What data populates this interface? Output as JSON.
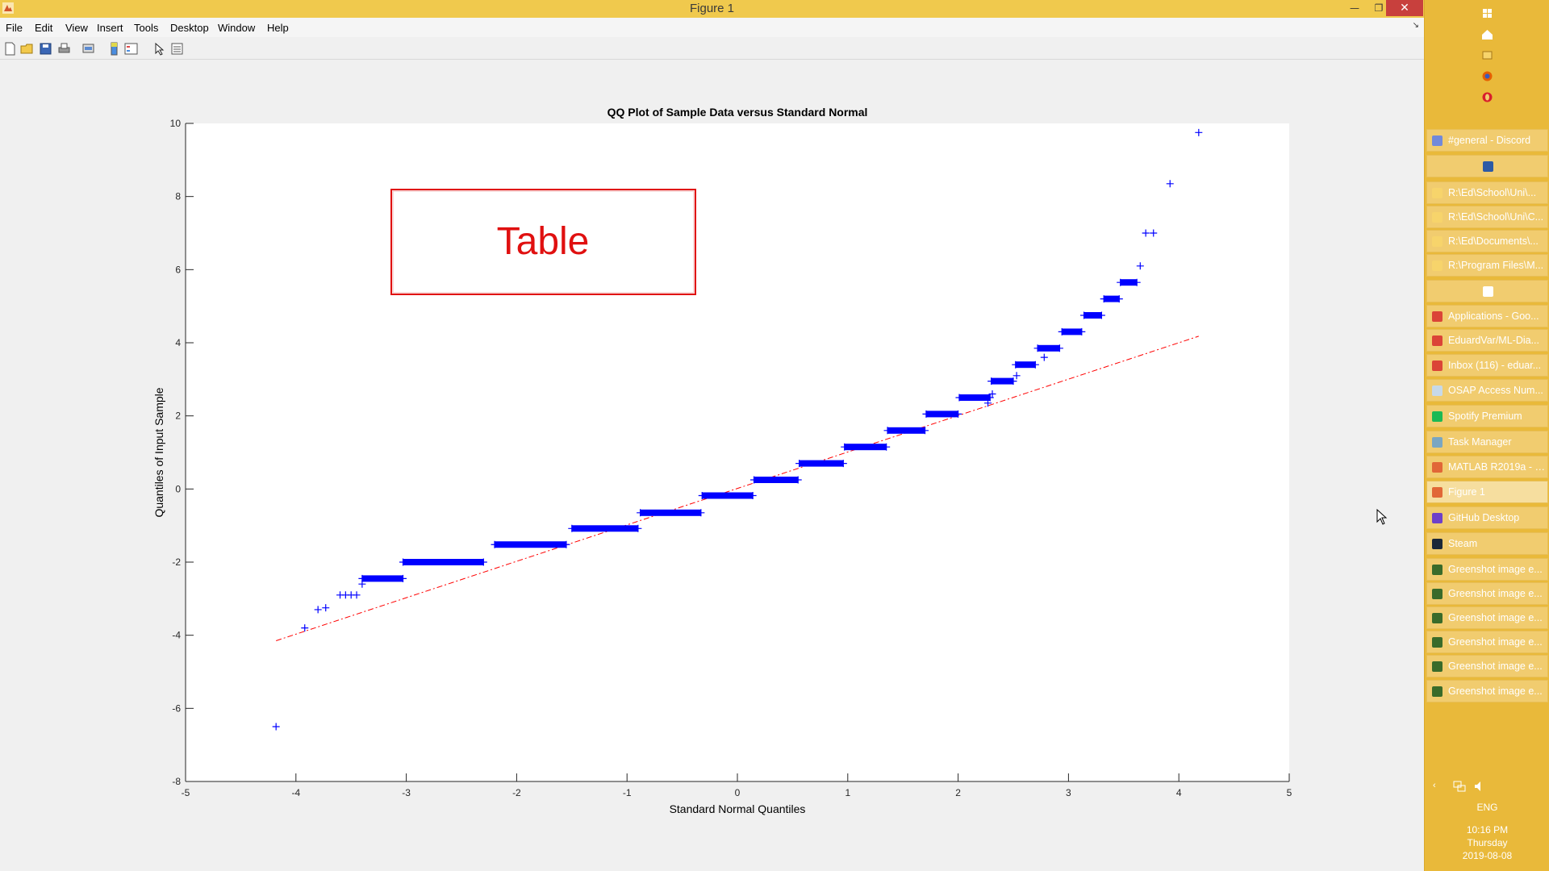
{
  "window": {
    "title": "Figure 1",
    "min_glyph": "—",
    "max_glyph": "❐",
    "close_glyph": "✕"
  },
  "menu": {
    "items": [
      "File",
      "Edit",
      "View",
      "Insert",
      "Tools",
      "Desktop",
      "Window",
      "Help"
    ],
    "expand_glyph": "↘"
  },
  "toolbar": {
    "tools": [
      "new-figure-icon",
      "open-file-icon",
      "save-icon",
      "print-icon",
      "link-plot-icon",
      "insert-colorbar-icon",
      "insert-legend-icon",
      "edit-plot-icon",
      "property-inspector-icon"
    ]
  },
  "overlay": {
    "label": "Table",
    "border_color": "#e01010",
    "text_color": "#e01010"
  },
  "chart_data": {
    "type": "scatter",
    "title": "QQ Plot of Sample Data versus Standard Normal",
    "xlabel": "Standard Normal Quantiles",
    "ylabel": "Quantiles of Input Sample",
    "xlim": [
      -5,
      5
    ],
    "ylim": [
      -8,
      10
    ],
    "xticks": [
      -5,
      -4,
      -3,
      -2,
      -1,
      0,
      1,
      2,
      3,
      4,
      5
    ],
    "yticks": [
      -8,
      -6,
      -4,
      -2,
      0,
      2,
      4,
      6,
      8,
      10
    ],
    "marker": "+",
    "marker_color": "#0000ff",
    "reference_line_color": "#ff0000",
    "reference_line": {
      "style": "dash-dot",
      "from": [
        -4.18,
        -4.15
      ],
      "to": [
        4.18,
        4.18
      ]
    },
    "outliers": [
      [
        -4.18,
        -6.5
      ],
      [
        -3.92,
        -3.8
      ],
      [
        -3.8,
        -3.3
      ],
      [
        -3.73,
        -3.25
      ],
      [
        -3.6,
        -2.9
      ],
      [
        -3.55,
        -2.9
      ],
      [
        -3.5,
        -2.9
      ],
      [
        -3.45,
        -2.9
      ],
      [
        -3.4,
        -2.6
      ],
      [
        4.18,
        9.75
      ],
      [
        3.92,
        8.35
      ],
      [
        3.77,
        7.0
      ],
      [
        3.7,
        7.0
      ],
      [
        3.65,
        6.1
      ],
      [
        2.78,
        3.6
      ],
      [
        2.53,
        3.1
      ],
      [
        2.31,
        2.6
      ],
      [
        2.27,
        2.35
      ]
    ],
    "steps": [
      {
        "x_start": -3.4,
        "x_end": -3.03,
        "y": -2.45
      },
      {
        "x_start": -3.03,
        "x_end": -2.3,
        "y": -2.0
      },
      {
        "x_start": -2.2,
        "x_end": -1.55,
        "y": -1.52
      },
      {
        "x_start": -1.5,
        "x_end": -0.9,
        "y": -1.08
      },
      {
        "x_start": -0.88,
        "x_end": -0.33,
        "y": -0.65
      },
      {
        "x_start": -0.32,
        "x_end": 0.14,
        "y": -0.18
      },
      {
        "x_start": 0.15,
        "x_end": 0.55,
        "y": 0.25
      },
      {
        "x_start": 0.56,
        "x_end": 0.96,
        "y": 0.7
      },
      {
        "x_start": 0.97,
        "x_end": 1.35,
        "y": 1.15
      },
      {
        "x_start": 1.36,
        "x_end": 1.7,
        "y": 1.6
      },
      {
        "x_start": 1.71,
        "x_end": 2.0,
        "y": 2.05
      },
      {
        "x_start": 2.01,
        "x_end": 2.29,
        "y": 2.5
      },
      {
        "x_start": 2.3,
        "x_end": 2.5,
        "y": 2.95
      },
      {
        "x_start": 2.52,
        "x_end": 2.7,
        "y": 3.4
      },
      {
        "x_start": 2.72,
        "x_end": 2.92,
        "y": 3.85
      },
      {
        "x_start": 2.94,
        "x_end": 3.12,
        "y": 4.3
      },
      {
        "x_start": 3.14,
        "x_end": 3.3,
        "y": 4.75
      },
      {
        "x_start": 3.32,
        "x_end": 3.46,
        "y": 5.2
      },
      {
        "x_start": 3.47,
        "x_end": 3.62,
        "y": 5.65
      }
    ]
  },
  "taskbar": {
    "pinned": [
      "windows-start-icon",
      "home-icon",
      "folder-network-icon",
      "firefox-icon",
      "opera-icon"
    ],
    "items": [
      {
        "label": "#general - Discord",
        "icon_color": "#7289da"
      },
      {
        "label": "",
        "icon_color": "#2d5aa5",
        "icon_only": true
      },
      {
        "label": "R:\\Ed\\School\\Uni\\...",
        "icon_color": "#f7d46b"
      },
      {
        "label": "R:\\Ed\\School\\Uni\\C...",
        "icon_color": "#f7d46b"
      },
      {
        "label": "R:\\Ed\\Documents\\...",
        "icon_color": "#f7d46b"
      },
      {
        "label": "R:\\Program Files\\M...",
        "icon_color": "#f7d46b"
      },
      {
        "label": "",
        "icon_color": "#ffffff",
        "icon_only": true
      },
      {
        "label": "Applications - Goo...",
        "icon_color": "#db4437"
      },
      {
        "label": "EduardVar/ML-Dia...",
        "icon_color": "#db4437"
      },
      {
        "label": "Inbox (116) - eduar...",
        "icon_color": "#db4437"
      },
      {
        "label": "OSAP Access Num...",
        "icon_color": "#c7d9e8"
      },
      {
        "label": "Spotify Premium",
        "icon_color": "#1db954"
      },
      {
        "label": "Task Manager",
        "icon_color": "#7aa6c2"
      },
      {
        "label": "MATLAB R2019a - a...",
        "icon_color": "#e16737"
      },
      {
        "label": "Figure 1",
        "icon_color": "#e16737",
        "active": true
      },
      {
        "label": "GitHub Desktop",
        "icon_color": "#6e40c9"
      },
      {
        "label": "Steam",
        "icon_color": "#1b2838"
      },
      {
        "label": "Greenshot image e...",
        "icon_color": "#3a6b2a"
      },
      {
        "label": "Greenshot image e...",
        "icon_color": "#3a6b2a"
      },
      {
        "label": "Greenshot image e...",
        "icon_color": "#3a6b2a"
      },
      {
        "label": "Greenshot image e...",
        "icon_color": "#3a6b2a"
      },
      {
        "label": "Greenshot image e...",
        "icon_color": "#3a6b2a"
      },
      {
        "label": "Greenshot image e...",
        "icon_color": "#3a6b2a"
      }
    ],
    "tray": {
      "lang": "ENG",
      "time": "10:16 PM",
      "day": "Thursday",
      "date": "2019-08-08"
    }
  }
}
